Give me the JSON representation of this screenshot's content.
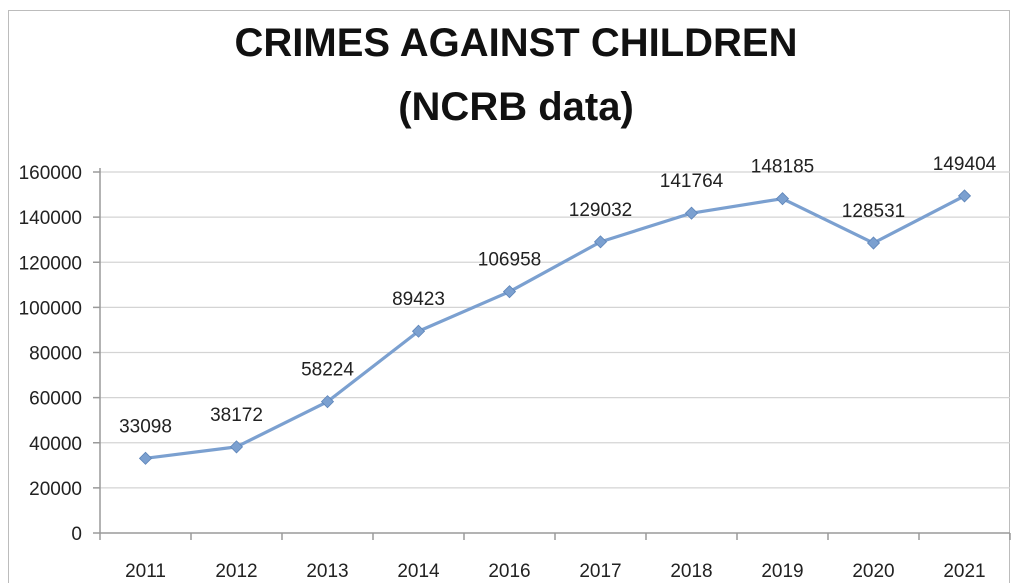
{
  "chart_data": {
    "type": "line",
    "title": "CRIMES AGAINST CHILDREN",
    "subtitle": "(NCRB data)",
    "categories": [
      "2011",
      "2012",
      "2013",
      "2014",
      "2016",
      "2017",
      "2018",
      "2019",
      "2020",
      "2021"
    ],
    "series": [
      {
        "values": [
          33098,
          38172,
          58224,
          89423,
          106958,
          129032,
          141764,
          148185,
          128531,
          149404
        ],
        "color": "#7ba0d0"
      }
    ],
    "y_ticks": [
      "0",
      "20000",
      "40000",
      "60000",
      "80000",
      "100000",
      "120000",
      "140000",
      "160000"
    ],
    "ylim": [
      0,
      160000
    ],
    "grid": true,
    "legend": "none",
    "gridline_color": "#d4d4d4"
  }
}
